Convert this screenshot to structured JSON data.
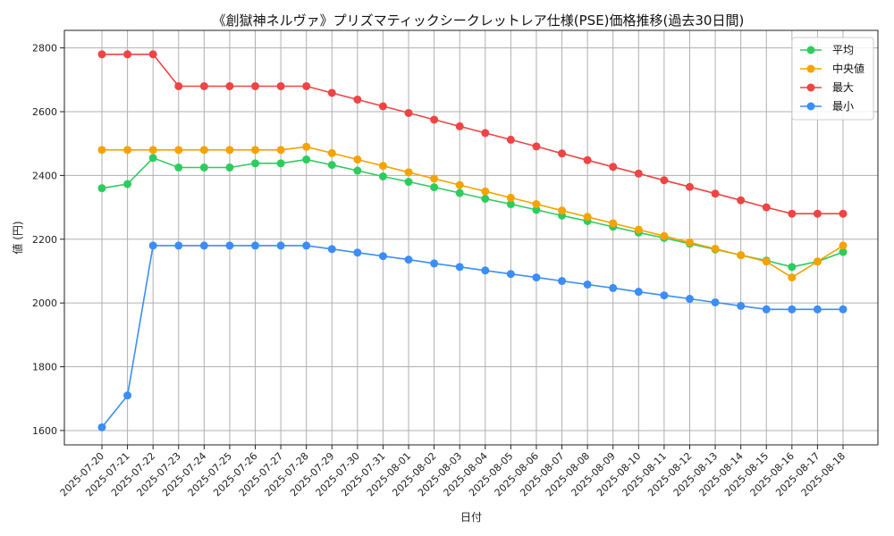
{
  "chart_data": {
    "type": "line",
    "title": "《創獄神ネルヴァ》プリズマティックシークレットレア仕様(PSE)価格推移(過去30日間)",
    "xlabel": "日付",
    "ylabel": "値 (円)",
    "ylim": [
      1555,
      2855
    ],
    "yticks": [
      1600,
      1800,
      2000,
      2200,
      2400,
      2600,
      2800
    ],
    "grid": true,
    "legend_position": "top-right",
    "categories": [
      "2025-07-20",
      "2025-07-21",
      "2025-07-22",
      "2025-07-23",
      "2025-07-24",
      "2025-07-25",
      "2025-07-26",
      "2025-07-27",
      "2025-07-28",
      "2025-07-29",
      "2025-07-30",
      "2025-07-31",
      "2025-08-01",
      "2025-08-02",
      "2025-08-03",
      "2025-08-04",
      "2025-08-05",
      "2025-08-06",
      "2025-08-07",
      "2025-08-08",
      "2025-08-09",
      "2025-08-10",
      "2025-08-11",
      "2025-08-12",
      "2025-08-13",
      "2025-08-14",
      "2025-08-15",
      "2025-08-16",
      "2025-08-17",
      "2025-08-18"
    ],
    "series": [
      {
        "name": "平均",
        "color": "#2ecc5f",
        "values": [
          2360,
          2373,
          2455,
          2425,
          2425,
          2425,
          2438,
          2438,
          2450,
          2433,
          2415,
          2397,
          2380,
          2363,
          2345,
          2327,
          2310,
          2292,
          2274,
          2257,
          2239,
          2221,
          2204,
          2186,
          2168,
          2150,
          2133,
          2113,
          2130,
          2160
        ]
      },
      {
        "name": "中央値",
        "color": "#f5a300",
        "values": [
          2480,
          2480,
          2480,
          2480,
          2480,
          2480,
          2480,
          2480,
          2490,
          2470,
          2450,
          2430,
          2410,
          2390,
          2370,
          2350,
          2330,
          2310,
          2290,
          2270,
          2250,
          2230,
          2210,
          2190,
          2170,
          2150,
          2130,
          2080,
          2130,
          2180
        ]
      },
      {
        "name": "最大",
        "color": "#ef4444",
        "values": [
          2780,
          2780,
          2780,
          2680,
          2680,
          2680,
          2680,
          2680,
          2680,
          2659,
          2638,
          2617,
          2596,
          2575,
          2554,
          2533,
          2512,
          2491,
          2469,
          2448,
          2427,
          2406,
          2385,
          2364,
          2343,
          2322,
          2300,
          2280,
          2280,
          2280
        ]
      },
      {
        "name": "最小",
        "color": "#3b8ef5",
        "values": [
          1610,
          1710,
          2180,
          2180,
          2180,
          2180,
          2180,
          2180,
          2180,
          2169,
          2158,
          2147,
          2136,
          2124,
          2113,
          2102,
          2091,
          2080,
          2069,
          2058,
          2047,
          2035,
          2024,
          2013,
          2002,
          1991,
          1980,
          1980,
          1980,
          1980
        ]
      }
    ]
  }
}
